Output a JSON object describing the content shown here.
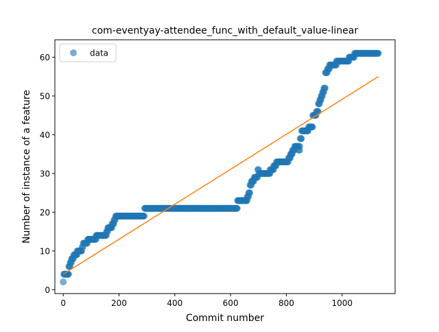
{
  "chart_data": {
    "type": "scatter",
    "title": "com-eventyay-attendee_func_with_default_value-linear",
    "xlabel": "Commit number",
    "ylabel": "Number of instance of a feature",
    "xlim": [
      -30,
      1190
    ],
    "ylim": [
      -1,
      64.5
    ],
    "xticks": [
      0,
      200,
      400,
      600,
      800,
      1000
    ],
    "yticks": [
      0,
      10,
      20,
      30,
      40,
      50,
      60
    ],
    "legend": {
      "position": "top-left",
      "entries": [
        {
          "label": "data",
          "color": "#1f77b4"
        }
      ]
    },
    "colors": {
      "data": "#1f77b4",
      "fit": "#ff7f0e"
    },
    "series": [
      {
        "name": "data",
        "kind": "scatter",
        "steps": [
          [
            0,
            2
          ],
          [
            2,
            4
          ],
          [
            15,
            4
          ],
          [
            20,
            6
          ],
          [
            25,
            7
          ],
          [
            30,
            8
          ],
          [
            38,
            9
          ],
          [
            45,
            9
          ],
          [
            50,
            10
          ],
          [
            60,
            10
          ],
          [
            68,
            11
          ],
          [
            72,
            12
          ],
          [
            80,
            12
          ],
          [
            88,
            13
          ],
          [
            96,
            13
          ],
          [
            105,
            13
          ],
          [
            118,
            14
          ],
          [
            128,
            14
          ],
          [
            140,
            14
          ],
          [
            150,
            14
          ],
          [
            155,
            15
          ],
          [
            160,
            16
          ],
          [
            170,
            16
          ],
          [
            175,
            17
          ],
          [
            182,
            18
          ],
          [
            188,
            19
          ],
          [
            200,
            19
          ],
          [
            220,
            19
          ],
          [
            240,
            19
          ],
          [
            260,
            19
          ],
          [
            280,
            19
          ],
          [
            292,
            21
          ],
          [
            320,
            21
          ],
          [
            360,
            21
          ],
          [
            400,
            21
          ],
          [
            440,
            21
          ],
          [
            480,
            21
          ],
          [
            520,
            21
          ],
          [
            560,
            21
          ],
          [
            600,
            21
          ],
          [
            620,
            21
          ],
          [
            625,
            23
          ],
          [
            640,
            23
          ],
          [
            655,
            23
          ],
          [
            660,
            24
          ],
          [
            665,
            25
          ],
          [
            670,
            27
          ],
          [
            675,
            28
          ],
          [
            685,
            29
          ],
          [
            692,
            29
          ],
          [
            698,
            31
          ],
          [
            702,
            30
          ],
          [
            715,
            30
          ],
          [
            735,
            30
          ],
          [
            742,
            31
          ],
          [
            755,
            32
          ],
          [
            765,
            33
          ],
          [
            780,
            33
          ],
          [
            798,
            33
          ],
          [
            808,
            34
          ],
          [
            815,
            35
          ],
          [
            822,
            36
          ],
          [
            830,
            37
          ],
          [
            838,
            37
          ],
          [
            845,
            36
          ],
          [
            848,
            37
          ],
          [
            850,
            39
          ],
          [
            855,
            41
          ],
          [
            870,
            41
          ],
          [
            880,
            42
          ],
          [
            890,
            42
          ],
          [
            895,
            45
          ],
          [
            900,
            45
          ],
          [
            908,
            46
          ],
          [
            915,
            48
          ],
          [
            920,
            49
          ],
          [
            925,
            50
          ],
          [
            930,
            51
          ],
          [
            935,
            52
          ],
          [
            940,
            56
          ],
          [
            948,
            57
          ],
          [
            955,
            58
          ],
          [
            965,
            58
          ],
          [
            980,
            59
          ],
          [
            995,
            59
          ],
          [
            1010,
            59
          ],
          [
            1025,
            60
          ],
          [
            1035,
            60
          ],
          [
            1045,
            61
          ],
          [
            1060,
            61
          ],
          [
            1080,
            61
          ],
          [
            1100,
            61
          ],
          [
            1120,
            61
          ],
          [
            1130,
            61
          ]
        ]
      },
      {
        "name": "",
        "kind": "line",
        "points": [
          [
            0,
            4.0
          ],
          [
            1130,
            55.0
          ]
        ]
      }
    ]
  }
}
